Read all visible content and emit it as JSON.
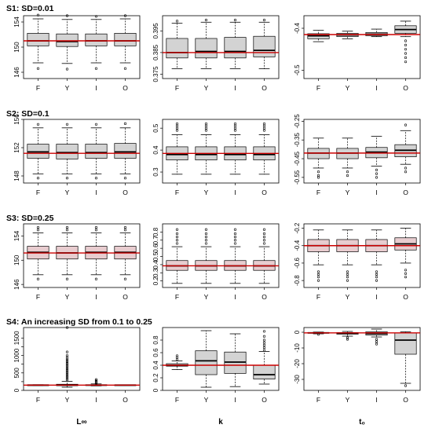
{
  "figure": {
    "row_titles": [
      "S1: SD=0.01",
      "S2: SD=0.1",
      "S3: SD=0.25",
      "S4: An increasing SD from 0.1 to 0.25"
    ],
    "column_labels": [
      "L∞",
      "k",
      "t₀"
    ]
  },
  "chart_data": [
    {
      "type": "boxplot",
      "scenario": "S1: SD=0.01",
      "parameter": "L∞",
      "categories": [
        "F",
        "Y",
        "I",
        "O"
      ],
      "ylim": [
        145,
        155
      ],
      "yticks": [
        146,
        150,
        154
      ],
      "true_value": 151,
      "pink_boxes": false,
      "boxes": [
        {
          "min": 147.5,
          "q1": 150.2,
          "median": 151.0,
          "q3": 152.2,
          "max": 154.5,
          "outliers": [
            146.6,
            155.1
          ]
        },
        {
          "min": 147.4,
          "q1": 150.1,
          "median": 150.9,
          "q3": 152.1,
          "max": 154.4,
          "outliers": [
            146.5,
            155.0
          ]
        },
        {
          "min": 147.5,
          "q1": 150.2,
          "median": 151.0,
          "q3": 152.1,
          "max": 154.4,
          "outliers": [
            146.6,
            154.9
          ]
        },
        {
          "min": 147.5,
          "q1": 150.2,
          "median": 151.0,
          "q3": 152.2,
          "max": 154.5,
          "outliers": [
            146.6,
            155.0
          ]
        }
      ]
    },
    {
      "type": "boxplot",
      "scenario": "S1: SD=0.01",
      "parameter": "k",
      "categories": [
        "F",
        "Y",
        "I",
        "O"
      ],
      "ylim": [
        0.373,
        0.402
      ],
      "yticks": [
        0.375,
        0.385,
        0.395
      ],
      "true_value": 0.385,
      "pink_boxes": false,
      "boxes": [
        {
          "min": 0.3775,
          "q1": 0.3825,
          "median": 0.385,
          "q3": 0.3915,
          "max": 0.3985,
          "outliers": [
            0.3995
          ]
        },
        {
          "min": 0.3775,
          "q1": 0.3825,
          "median": 0.3855,
          "q3": 0.3915,
          "max": 0.399,
          "outliers": [
            0.4
          ]
        },
        {
          "min": 0.3775,
          "q1": 0.3825,
          "median": 0.3855,
          "q3": 0.392,
          "max": 0.399,
          "outliers": [
            0.4
          ]
        },
        {
          "min": 0.3775,
          "q1": 0.383,
          "median": 0.386,
          "q3": 0.3925,
          "max": 0.399,
          "outliers": [
            0.4
          ]
        }
      ]
    },
    {
      "type": "boxplot",
      "scenario": "S1: SD=0.01",
      "parameter": "t₀",
      "categories": [
        "F",
        "Y",
        "I",
        "O"
      ],
      "ylim": [
        -0.52,
        -0.37
      ],
      "yticks": [
        -0.4,
        -0.5
      ],
      "true_value": -0.415,
      "pink_boxes": false,
      "boxes": [
        {
          "min": -0.432,
          "q1": -0.425,
          "median": -0.418,
          "q3": -0.413,
          "max": -0.405,
          "outliers": []
        },
        {
          "min": -0.425,
          "q1": -0.42,
          "median": -0.416,
          "q3": -0.412,
          "max": -0.407,
          "outliers": []
        },
        {
          "min": -0.42,
          "q1": -0.418,
          "median": -0.414,
          "q3": -0.41,
          "max": -0.402,
          "outliers": []
        },
        {
          "min": -0.42,
          "q1": -0.412,
          "median": -0.403,
          "q3": -0.394,
          "max": -0.383,
          "outliers": [
            -0.43,
            -0.44,
            -0.45,
            -0.46,
            -0.47,
            -0.48
          ]
        }
      ]
    },
    {
      "type": "boxplot",
      "scenario": "S2: SD=0.1",
      "parameter": "L∞",
      "categories": [
        "F",
        "Y",
        "I",
        "O"
      ],
      "ylim": [
        147,
        156
      ],
      "yticks": [
        148,
        152,
        156
      ],
      "true_value": 151.2,
      "pink_boxes": false,
      "boxes": [
        {
          "min": 148.3,
          "q1": 150.5,
          "median": 151.4,
          "q3": 152.5,
          "max": 154.8,
          "outliers": [
            147.7,
            155.3
          ]
        },
        {
          "min": 148.3,
          "q1": 150.4,
          "median": 151.3,
          "q3": 152.5,
          "max": 154.8,
          "outliers": [
            147.7,
            155.3
          ]
        },
        {
          "min": 148.3,
          "q1": 150.5,
          "median": 151.3,
          "q3": 152.5,
          "max": 154.8,
          "outliers": [
            147.7,
            155.3
          ]
        },
        {
          "min": 148.3,
          "q1": 150.5,
          "median": 151.4,
          "q3": 152.6,
          "max": 154.8,
          "outliers": [
            147.7,
            155.4
          ]
        }
      ]
    },
    {
      "type": "boxplot",
      "scenario": "S2: SD=0.1",
      "parameter": "k",
      "categories": [
        "F",
        "Y",
        "I",
        "O"
      ],
      "ylim": [
        0.25,
        0.54
      ],
      "yticks": [
        0.3,
        0.4,
        0.5
      ],
      "true_value": 0.385,
      "pink_boxes": false,
      "boxes": [
        {
          "min": 0.29,
          "q1": 0.355,
          "median": 0.38,
          "q3": 0.415,
          "max": 0.47,
          "outliers": [
            0.49,
            0.5,
            0.51,
            0.52
          ]
        },
        {
          "min": 0.29,
          "q1": 0.355,
          "median": 0.38,
          "q3": 0.415,
          "max": 0.47,
          "outliers": [
            0.49,
            0.5,
            0.51,
            0.52
          ]
        },
        {
          "min": 0.29,
          "q1": 0.355,
          "median": 0.38,
          "q3": 0.415,
          "max": 0.47,
          "outliers": [
            0.49,
            0.5,
            0.51,
            0.52
          ]
        },
        {
          "min": 0.29,
          "q1": 0.355,
          "median": 0.38,
          "q3": 0.415,
          "max": 0.47,
          "outliers": [
            0.49,
            0.5,
            0.51,
            0.52
          ]
        }
      ]
    },
    {
      "type": "boxplot",
      "scenario": "S2: SD=0.1",
      "parameter": "t₀",
      "categories": [
        "F",
        "Y",
        "I",
        "O"
      ],
      "ylim": [
        -0.58,
        -0.24
      ],
      "yticks": [
        -0.25,
        -0.35,
        -0.45,
        -0.55
      ],
      "true_value": -0.42,
      "pink_boxes": false,
      "boxes": [
        {
          "min": -0.5,
          "q1": -0.45,
          "median": -0.42,
          "q3": -0.395,
          "max": -0.34,
          "outliers": [
            -0.52,
            -0.54,
            -0.55
          ]
        },
        {
          "min": -0.5,
          "q1": -0.45,
          "median": -0.42,
          "q3": -0.395,
          "max": -0.34,
          "outliers": [
            -0.52,
            -0.54
          ]
        },
        {
          "min": -0.49,
          "q1": -0.445,
          "median": -0.415,
          "q3": -0.39,
          "max": -0.33,
          "outliers": [
            -0.51,
            -0.53,
            -0.55
          ]
        },
        {
          "min": -0.48,
          "q1": -0.44,
          "median": -0.405,
          "q3": -0.375,
          "max": -0.3,
          "outliers": [
            -0.27,
            -0.5,
            -0.52
          ]
        }
      ]
    },
    {
      "type": "boxplot",
      "scenario": "S3: SD=0.25",
      "parameter": "L∞",
      "categories": [
        "F",
        "Y",
        "I",
        "O"
      ],
      "ylim": [
        145.5,
        156
      ],
      "yticks": [
        146,
        150,
        154
      ],
      "true_value": 151.2,
      "pink_boxes": true,
      "boxes": [
        {
          "min": 147.6,
          "q1": 150.2,
          "median": 151.3,
          "q3": 152.3,
          "max": 154.5,
          "outliers": [
            146.9,
            155.0,
            155.4
          ]
        },
        {
          "min": 147.6,
          "q1": 150.2,
          "median": 151.2,
          "q3": 152.3,
          "max": 154.5,
          "outliers": [
            146.9,
            155.0,
            155.4
          ]
        },
        {
          "min": 147.6,
          "q1": 150.2,
          "median": 151.3,
          "q3": 152.3,
          "max": 154.5,
          "outliers": [
            146.9,
            155.0,
            155.4
          ]
        },
        {
          "min": 147.6,
          "q1": 150.2,
          "median": 151.3,
          "q3": 152.3,
          "max": 154.5,
          "outliers": [
            146.9,
            155.0,
            155.4
          ]
        }
      ]
    },
    {
      "type": "boxplot",
      "scenario": "S3: SD=0.25",
      "parameter": "k",
      "categories": [
        "F",
        "Y",
        "I",
        "O"
      ],
      "ylim": [
        0.12,
        0.9
      ],
      "yticks": [
        0.2,
        0.3,
        0.4,
        0.5,
        0.6,
        0.7,
        0.8
      ],
      "true_value": 0.385,
      "pink_boxes": true,
      "boxes": [
        {
          "min": 0.17,
          "q1": 0.33,
          "median": 0.385,
          "q3": 0.45,
          "max": 0.62,
          "outliers": [
            0.66,
            0.7,
            0.74,
            0.78,
            0.83
          ]
        },
        {
          "min": 0.17,
          "q1": 0.33,
          "median": 0.385,
          "q3": 0.45,
          "max": 0.62,
          "outliers": [
            0.66,
            0.7,
            0.74,
            0.78,
            0.83
          ]
        },
        {
          "min": 0.17,
          "q1": 0.33,
          "median": 0.385,
          "q3": 0.45,
          "max": 0.62,
          "outliers": [
            0.66,
            0.7,
            0.74,
            0.78,
            0.83
          ]
        },
        {
          "min": 0.17,
          "q1": 0.33,
          "median": 0.385,
          "q3": 0.45,
          "max": 0.62,
          "outliers": [
            0.66,
            0.7,
            0.74,
            0.78,
            0.83
          ]
        }
      ]
    },
    {
      "type": "boxplot",
      "scenario": "S3: SD=0.25",
      "parameter": "t₀",
      "categories": [
        "F",
        "Y",
        "I",
        "O"
      ],
      "ylim": [
        -0.88,
        -0.15
      ],
      "yticks": [
        -0.2,
        -0.4,
        -0.6,
        -0.8
      ],
      "true_value": -0.4,
      "pink_boxes": true,
      "boxes": [
        {
          "min": -0.62,
          "q1": -0.47,
          "median": -0.4,
          "q3": -0.33,
          "max": -0.22,
          "outliers": [
            -0.7,
            -0.73,
            -0.76,
            -0.8
          ]
        },
        {
          "min": -0.62,
          "q1": -0.47,
          "median": -0.4,
          "q3": -0.33,
          "max": -0.22,
          "outliers": [
            -0.7,
            -0.73,
            -0.76,
            -0.8
          ]
        },
        {
          "min": -0.62,
          "q1": -0.47,
          "median": -0.4,
          "q3": -0.33,
          "max": -0.22,
          "outliers": [
            -0.7,
            -0.73,
            -0.76,
            -0.8
          ]
        },
        {
          "min": -0.6,
          "q1": -0.45,
          "median": -0.38,
          "q3": -0.31,
          "max": -0.2,
          "outliers": [
            -0.68,
            -0.72,
            -0.76
          ]
        }
      ]
    },
    {
      "type": "boxplot",
      "scenario": "S4: An increasing SD from 0.1 to 0.25",
      "parameter": "L∞",
      "categories": [
        "F",
        "Y",
        "I",
        "O"
      ],
      "ylim": [
        0,
        1800
      ],
      "yticks": [
        0,
        500,
        1000,
        1500
      ],
      "yticks_minor": [
        250,
        750,
        1250
      ],
      "true_value": 150,
      "pink_boxes": false,
      "boxes": [
        {
          "min": 140,
          "q1": 148,
          "median": 151,
          "q3": 154,
          "max": 162,
          "outliers": []
        },
        {
          "min": 90,
          "q1": 135,
          "median": 150,
          "q3": 175,
          "max": 260,
          "outliers": [
            300,
            340,
            380,
            420,
            460,
            500,
            540,
            580,
            620,
            660,
            700,
            740,
            780,
            820,
            860,
            900,
            950,
            1000,
            1100,
            1800
          ]
        },
        {
          "min": 130,
          "q1": 145,
          "median": 150,
          "q3": 158,
          "max": 185,
          "outliers": [
            200,
            225,
            250,
            280,
            310
          ]
        },
        {
          "min": 142,
          "q1": 148,
          "median": 151,
          "q3": 154,
          "max": 160,
          "outliers": []
        }
      ]
    },
    {
      "type": "boxplot",
      "scenario": "S4: An increasing SD from 0.1 to 0.25",
      "parameter": "k",
      "categories": [
        "F",
        "Y",
        "I",
        "O"
      ],
      "ylim": [
        0,
        1.0
      ],
      "yticks": [
        0.0,
        0.2,
        0.4,
        0.6,
        0.8
      ],
      "true_value": 0.4,
      "pink_boxes": false,
      "boxes": [
        {
          "min": 0.33,
          "q1": 0.385,
          "median": 0.4,
          "q3": 0.425,
          "max": 0.47,
          "outliers": [
            0.49,
            0.52,
            0.55
          ]
        },
        {
          "min": 0.05,
          "q1": 0.25,
          "median": 0.47,
          "q3": 0.63,
          "max": 0.95,
          "outliers": []
        },
        {
          "min": 0.06,
          "q1": 0.27,
          "median": 0.45,
          "q3": 0.61,
          "max": 0.9,
          "outliers": []
        },
        {
          "min": 0.1,
          "q1": 0.18,
          "median": 0.25,
          "q3": 0.4,
          "max": 0.62,
          "outliers": [
            0.64,
            0.68,
            0.72,
            0.76,
            0.8,
            0.86,
            0.94
          ]
        }
      ]
    },
    {
      "type": "boxplot",
      "scenario": "S4: An increasing SD from 0.1 to 0.25",
      "parameter": "t₀",
      "categories": [
        "F",
        "Y",
        "I",
        "O"
      ],
      "ylim": [
        -37,
        3
      ],
      "yticks": [
        0,
        -10,
        -20,
        -30
      ],
      "true_value": -0.4,
      "pink_boxes": false,
      "boxes": [
        {
          "min": -1.0,
          "q1": -0.6,
          "median": -0.4,
          "q3": -0.2,
          "max": 0.1,
          "outliers": [
            -1.3
          ]
        },
        {
          "min": -2.5,
          "q1": -1.2,
          "median": -0.6,
          "q3": -0.2,
          "max": 0.5,
          "outliers": [
            -3.5,
            -4.5
          ]
        },
        {
          "min": -3.0,
          "q1": -1.8,
          "median": -0.8,
          "q3": 0.3,
          "max": 2.0,
          "outliers": [
            -4.5,
            -6.0,
            -7.5
          ]
        },
        {
          "min": -32.5,
          "q1": -14.0,
          "median": -5.0,
          "q3": -0.5,
          "max": 0.3,
          "outliers": [
            -34.0
          ]
        }
      ]
    }
  ]
}
